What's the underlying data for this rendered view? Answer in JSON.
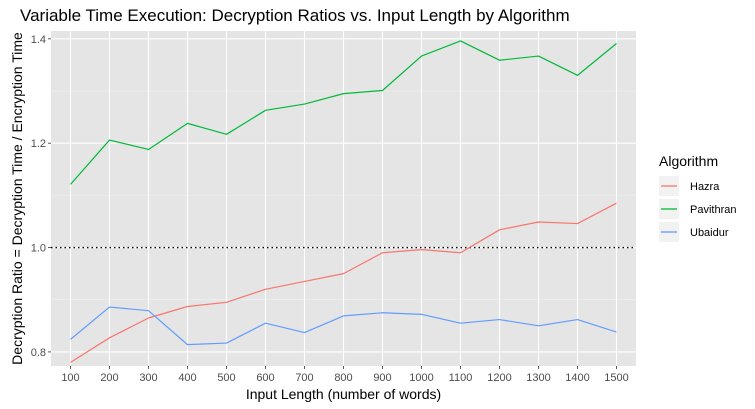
{
  "chart_data": {
    "type": "line",
    "title": "Variable Time Execution: Decryption Ratios vs. Input Length by Algorithm",
    "xlabel": "Input Length (number of words)",
    "ylabel": "Decryption Ratio = Decryption Time / Encryption Time",
    "x": [
      100,
      200,
      300,
      400,
      500,
      600,
      700,
      800,
      900,
      1000,
      1100,
      1200,
      1300,
      1400,
      1500
    ],
    "x_tick_labels": [
      "100",
      "200",
      "300",
      "400",
      "500",
      "600",
      "700",
      "800",
      "900",
      "1000",
      "1100",
      "1200",
      "1300",
      "1400",
      "1500"
    ],
    "y_ticks": [
      0.8,
      1.0,
      1.2,
      1.4
    ],
    "y_tick_labels": [
      "0.8",
      "1.0",
      "1.2",
      "1.4"
    ],
    "xlim": [
      50,
      1550
    ],
    "ylim": [
      0.773,
      1.415
    ],
    "grid": true,
    "background": "#e5e5e5",
    "reference_line": {
      "y": 1.0,
      "style": "dotted",
      "color": "#000000"
    },
    "legend": {
      "title": "Algorithm",
      "position": "right"
    },
    "series": [
      {
        "name": "Hazra",
        "color": "#f8766d",
        "values": [
          0.78,
          0.827,
          0.865,
          0.887,
          0.895,
          0.92,
          0.935,
          0.95,
          0.99,
          0.996,
          0.99,
          1.034,
          1.049,
          1.046,
          1.085
        ]
      },
      {
        "name": "Pavithran",
        "color": "#00ba38",
        "values": [
          1.121,
          1.206,
          1.188,
          1.238,
          1.217,
          1.263,
          1.275,
          1.295,
          1.301,
          1.367,
          1.396,
          1.359,
          1.367,
          1.33,
          1.391
        ]
      },
      {
        "name": "Ubaidur",
        "color": "#619cff",
        "values": [
          0.824,
          0.886,
          0.879,
          0.814,
          0.817,
          0.855,
          0.837,
          0.869,
          0.875,
          0.872,
          0.855,
          0.862,
          0.85,
          0.862,
          0.838
        ]
      }
    ]
  }
}
